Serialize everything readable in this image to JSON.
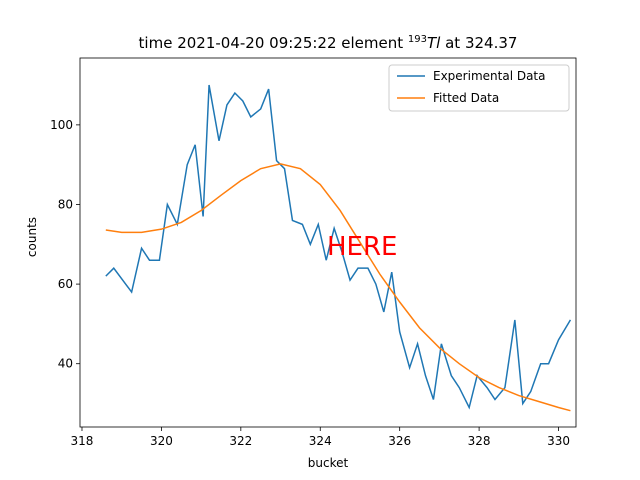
{
  "chart_data": {
    "type": "line",
    "title": {
      "prefix": "time 2021-04-20 09:25:22 element ",
      "superscript": "193",
      "element": "Tl",
      "suffix": " at 324.37"
    },
    "x_label": "bucket",
    "y_label": "counts",
    "annotation": "HERE",
    "annotation_color": "#ff0000",
    "legend": "upper right",
    "xlim": [
      317.95,
      330.44
    ],
    "ylim": [
      24.1,
      116.8
    ],
    "xticks": [
      318,
      320,
      322,
      324,
      326,
      328,
      330
    ],
    "yticks": [
      40,
      60,
      80,
      100
    ],
    "series": [
      {
        "name": "Experimental Data",
        "color": "#1f77b4",
        "x": [
          318.6,
          318.8,
          319.25,
          319.5,
          319.7,
          319.95,
          320.15,
          320.4,
          320.65,
          320.85,
          321.05,
          321.2,
          321.45,
          321.65,
          321.85,
          322.05,
          322.25,
          322.5,
          322.7,
          322.9,
          323.1,
          323.3,
          323.55,
          323.75,
          323.95,
          324.15,
          324.35,
          324.55,
          324.75,
          324.95,
          325.2,
          325.4,
          325.6,
          325.8,
          326.0,
          326.25,
          326.45,
          326.65,
          326.85,
          327.05,
          327.3,
          327.5,
          327.75,
          327.95,
          328.2,
          328.4,
          328.65,
          328.9,
          329.1,
          329.3,
          329.55,
          329.75,
          330.0,
          330.3
        ],
        "values": [
          62,
          64,
          58,
          69,
          66,
          66,
          80,
          75,
          90,
          95,
          77,
          110,
          96,
          105,
          108,
          106,
          102,
          104,
          109,
          91,
          89,
          76,
          75,
          70,
          75,
          66,
          74,
          68,
          61,
          64,
          64,
          60,
          53,
          63,
          48,
          39,
          45,
          37,
          31,
          45,
          37,
          34,
          29,
          37,
          34,
          31,
          34,
          51,
          30,
          33,
          40,
          40,
          46,
          51
        ]
      },
      {
        "name": "Fitted Data",
        "color": "#ff7f0e",
        "x": [
          318.6,
          319,
          319.5,
          320,
          320.5,
          321,
          321.5,
          322,
          322.5,
          323,
          323.5,
          324,
          324.5,
          325,
          325.5,
          326,
          326.5,
          327,
          327.5,
          328,
          328.5,
          329,
          329.5,
          330,
          330.3
        ],
        "values": [
          73.6,
          73,
          73,
          73.8,
          75.5,
          78.5,
          82.3,
          86,
          89,
          90.2,
          89,
          85,
          78.5,
          70.5,
          62.5,
          55.5,
          49,
          44,
          40,
          36.5,
          34,
          32,
          30.5,
          29,
          28.2
        ]
      }
    ]
  }
}
